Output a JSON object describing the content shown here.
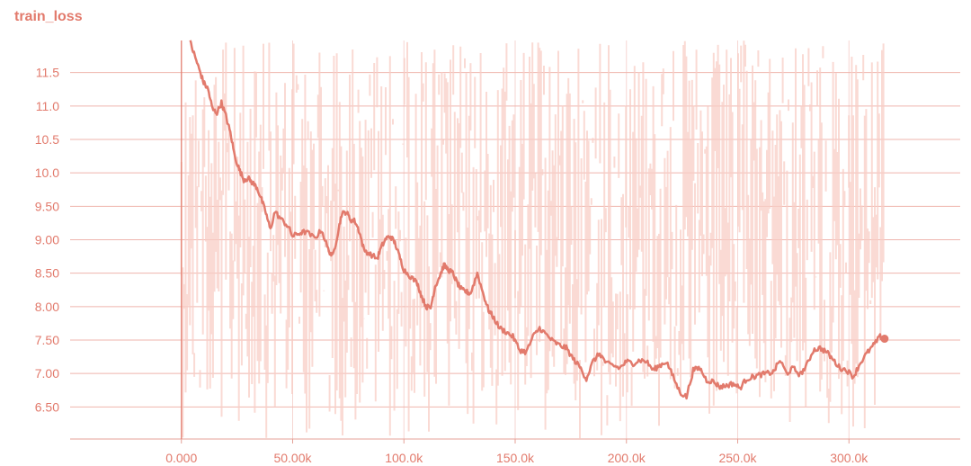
{
  "chart_data": {
    "type": "line",
    "title": "train_loss",
    "xlabel": "",
    "ylabel": "",
    "xlim": [
      -50000,
      350000
    ],
    "ylim": [
      6.02,
      11.98
    ],
    "x_ticks": [
      0,
      50000,
      100000,
      150000,
      200000,
      250000,
      300000
    ],
    "x_tick_labels": [
      "0.000",
      "50.00k",
      "100.0k",
      "150.0k",
      "200.0k",
      "250.0k",
      "300.0k"
    ],
    "y_ticks": [
      6.5,
      7.0,
      7.5,
      8.0,
      8.5,
      9.0,
      9.5,
      10.0,
      10.5,
      11.0,
      11.5
    ],
    "y_tick_labels": [
      "6.50",
      "7.00",
      "7.50",
      "8.00",
      "8.50",
      "9.00",
      "9.50",
      "10.0",
      "10.5",
      "11.0",
      "11.5"
    ],
    "grid": true,
    "legend": "none",
    "colors": {
      "line": "#e27a6c",
      "raw": "#f8cdc6",
      "grid": "#efb5ad",
      "axis": "#e5a197",
      "text": "#e27a6c"
    },
    "series": [
      {
        "role": "smoothed",
        "x": [
          4000,
          6000,
          8000,
          10000,
          12000,
          14000,
          16000,
          18000,
          20000,
          22000,
          24000,
          26000,
          28000,
          30000,
          32000,
          34000,
          36000,
          38000,
          40000,
          42000,
          45000,
          48000,
          50000,
          53000,
          56000,
          60000,
          63000,
          66000,
          68000,
          70000,
          72000,
          74000,
          76000,
          78000,
          80000,
          82000,
          85000,
          88000,
          90000,
          92000,
          94000,
          96000,
          98000,
          100000,
          103000,
          106000,
          108000,
          110000,
          112000,
          114000,
          116000,
          118000,
          120000,
          122000,
          124000,
          126000,
          128000,
          130000,
          133000,
          136000,
          138000,
          140000,
          143000,
          146000,
          149000,
          152000,
          155000,
          158000,
          161000,
          164000,
          167000,
          170000,
          173000,
          176000,
          179000,
          182000,
          185000,
          188000,
          191000,
          194000,
          197000,
          200000,
          203000,
          206000,
          209000,
          212000,
          215000,
          218000,
          221000,
          224000,
          227000,
          230000,
          233000,
          236000,
          239000,
          242000,
          245000,
          248000,
          251000,
          254000,
          257000,
          260000,
          263000,
          266000,
          269000,
          272000,
          275000,
          278000,
          281000,
          284000,
          287000,
          290000,
          293000,
          296000,
          299000,
          302000,
          305000,
          308000,
          311000,
          314000,
          316000
        ],
        "y": [
          11.95,
          11.75,
          11.55,
          11.35,
          11.25,
          10.95,
          10.9,
          11.05,
          10.85,
          10.6,
          10.25,
          10.05,
          9.9,
          9.92,
          9.85,
          9.78,
          9.6,
          9.4,
          9.15,
          9.42,
          9.3,
          9.2,
          9.05,
          9.1,
          9.12,
          9.02,
          9.15,
          8.85,
          8.75,
          9.05,
          9.38,
          9.42,
          9.3,
          9.28,
          9.12,
          8.85,
          8.78,
          8.72,
          8.9,
          9.02,
          9.05,
          8.95,
          8.75,
          8.55,
          8.45,
          8.35,
          8.15,
          8.0,
          7.98,
          8.3,
          8.45,
          8.62,
          8.55,
          8.5,
          8.35,
          8.25,
          8.22,
          8.2,
          8.5,
          8.15,
          7.95,
          7.85,
          7.68,
          7.62,
          7.55,
          7.35,
          7.32,
          7.55,
          7.68,
          7.58,
          7.48,
          7.42,
          7.38,
          7.22,
          7.1,
          6.92,
          7.18,
          7.3,
          7.15,
          7.12,
          7.08,
          7.18,
          7.15,
          7.2,
          7.18,
          7.05,
          7.12,
          7.18,
          6.95,
          6.72,
          6.65,
          7.05,
          7.08,
          6.9,
          6.88,
          6.8,
          6.82,
          6.85,
          6.78,
          6.92,
          6.95,
          6.98,
          7.0,
          7.02,
          7.2,
          7.0,
          7.08,
          6.98,
          7.12,
          7.35,
          7.38,
          7.32,
          7.2,
          7.08,
          7.05,
          6.95,
          7.15,
          7.3,
          7.42,
          7.55,
          7.52
        ]
      },
      {
        "role": "raw",
        "x_range": [
          0,
          316000
        ],
        "y_range": [
          6.02,
          11.98
        ]
      }
    ]
  }
}
